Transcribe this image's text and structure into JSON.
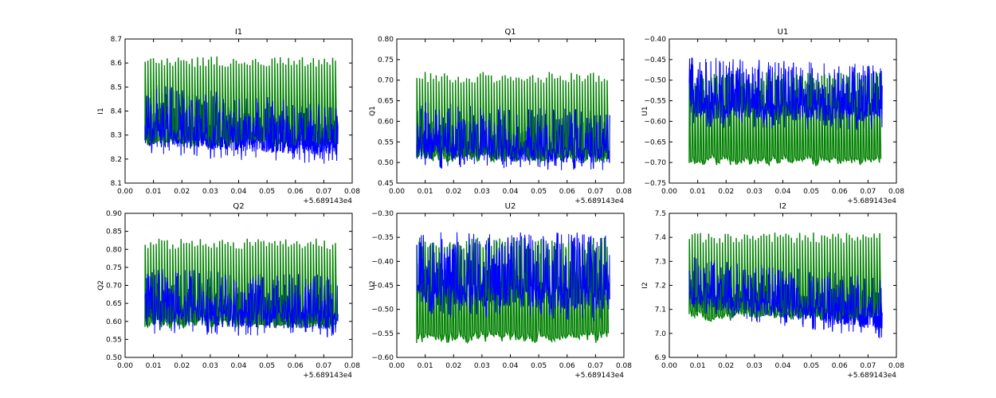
{
  "colors": {
    "series1": "#0000ff",
    "series2": "#008000",
    "axes": "#000000",
    "background": "#ffffff"
  },
  "chart_data": [
    {
      "type": "line",
      "title": "I1",
      "xlabel": "",
      "ylabel": "I1",
      "xlim": [
        0.0,
        0.08
      ],
      "ylim": [
        8.1,
        8.7
      ],
      "xticks": [
        "0.00",
        "0.01",
        "0.02",
        "0.03",
        "0.04",
        "0.05",
        "0.06",
        "0.07",
        "0.08"
      ],
      "yticks": [
        "8.1",
        "8.2",
        "8.3",
        "8.4",
        "8.5",
        "8.6",
        "8.7"
      ],
      "x_offset_label": "+5.689143e4",
      "data_x_range": [
        0.007,
        0.075
      ],
      "series": [
        {
          "name": "series-blue",
          "color": "#0000ff",
          "band_low": [
            8.24,
            8.2
          ],
          "band_high": [
            8.5,
            8.42
          ]
        },
        {
          "name": "series-green",
          "color": "#008000",
          "low": 8.25,
          "high": 8.63
        }
      ]
    },
    {
      "type": "line",
      "title": "Q1",
      "xlabel": "",
      "ylabel": "Q1",
      "xlim": [
        0.0,
        0.08
      ],
      "ylim": [
        0.45,
        0.8
      ],
      "xticks": [
        "0.00",
        "0.01",
        "0.02",
        "0.03",
        "0.04",
        "0.05",
        "0.06",
        "0.07",
        "0.08"
      ],
      "yticks": [
        "0.45",
        "0.50",
        "0.55",
        "0.60",
        "0.65",
        "0.70",
        "0.75",
        "0.80"
      ],
      "x_offset_label": "+5.689143e4",
      "data_x_range": [
        0.007,
        0.075
      ],
      "series": [
        {
          "name": "series-blue",
          "color": "#0000ff",
          "band_low": [
            0.5,
            0.49
          ],
          "band_high": [
            0.64,
            0.62
          ]
        },
        {
          "name": "series-green",
          "color": "#008000",
          "low": 0.5,
          "high": 0.72
        }
      ]
    },
    {
      "type": "line",
      "title": "U1",
      "xlabel": "",
      "ylabel": "U1",
      "xlim": [
        0.0,
        0.08
      ],
      "ylim": [
        -0.75,
        -0.4
      ],
      "xticks": [
        "0.00",
        "0.01",
        "0.02",
        "0.03",
        "0.04",
        "0.05",
        "0.06",
        "0.07",
        "0.08"
      ],
      "yticks": [
        "−0.75",
        "−0.70",
        "−0.65",
        "−0.60",
        "−0.55",
        "−0.50",
        "−0.45",
        "−0.40"
      ],
      "x_offset_label": "+5.689143e4",
      "data_x_range": [
        0.007,
        0.075
      ],
      "series": [
        {
          "name": "series-blue",
          "color": "#0000ff",
          "band_low": [
            -0.6,
            -0.61
          ],
          "band_high": [
            -0.45,
            -0.47
          ]
        },
        {
          "name": "series-green",
          "color": "#008000",
          "low": -0.71,
          "high": -0.48
        }
      ]
    },
    {
      "type": "line",
      "title": "Q2",
      "xlabel": "",
      "ylabel": "Q2",
      "xlim": [
        0.0,
        0.08
      ],
      "ylim": [
        0.5,
        0.9
      ],
      "xticks": [
        "0.00",
        "0.01",
        "0.02",
        "0.03",
        "0.04",
        "0.05",
        "0.06",
        "0.07",
        "0.08"
      ],
      "yticks": [
        "0.50",
        "0.55",
        "0.60",
        "0.65",
        "0.70",
        "0.75",
        "0.80",
        "0.85",
        "0.90"
      ],
      "x_offset_label": "+5.689143e4",
      "data_x_range": [
        0.007,
        0.075
      ],
      "series": [
        {
          "name": "series-blue",
          "color": "#0000ff",
          "band_low": [
            0.58,
            0.57
          ],
          "band_high": [
            0.74,
            0.72
          ]
        },
        {
          "name": "series-green",
          "color": "#008000",
          "low": 0.58,
          "high": 0.83
        }
      ]
    },
    {
      "type": "line",
      "title": "U2",
      "xlabel": "",
      "ylabel": "U2",
      "xlim": [
        0.0,
        0.08
      ],
      "ylim": [
        -0.6,
        -0.3
      ],
      "xticks": [
        "0.00",
        "0.01",
        "0.02",
        "0.03",
        "0.04",
        "0.05",
        "0.06",
        "0.07",
        "0.08"
      ],
      "yticks": [
        "−0.60",
        "−0.55",
        "−0.50",
        "−0.45",
        "−0.40",
        "−0.35",
        "−0.30"
      ],
      "x_offset_label": "+5.689143e4",
      "data_x_range": [
        0.007,
        0.075
      ],
      "series": [
        {
          "name": "series-blue",
          "color": "#0000ff",
          "band_low": [
            -0.5,
            -0.51
          ],
          "band_high": [
            -0.34,
            -0.35
          ]
        },
        {
          "name": "series-green",
          "color": "#008000",
          "low": -0.57,
          "high": -0.35
        }
      ]
    },
    {
      "type": "line",
      "title": "I2",
      "xlabel": "",
      "ylabel": "I2",
      "xlim": [
        0.0,
        0.08
      ],
      "ylim": [
        6.9,
        7.5
      ],
      "xticks": [
        "0.00",
        "0.01",
        "0.02",
        "0.03",
        "0.04",
        "0.05",
        "0.06",
        "0.07",
        "0.08"
      ],
      "yticks": [
        "6.9",
        "7.0",
        "7.1",
        "7.2",
        "7.3",
        "7.4",
        "7.5"
      ],
      "x_offset_label": "+5.689143e4",
      "data_x_range": [
        0.007,
        0.075
      ],
      "series": [
        {
          "name": "series-blue",
          "color": "#0000ff",
          "band_low": [
            7.1,
            7.0
          ],
          "band_high": [
            7.31,
            7.22
          ]
        },
        {
          "name": "series-green",
          "color": "#008000",
          "low": 7.05,
          "high": 7.42
        }
      ]
    }
  ]
}
